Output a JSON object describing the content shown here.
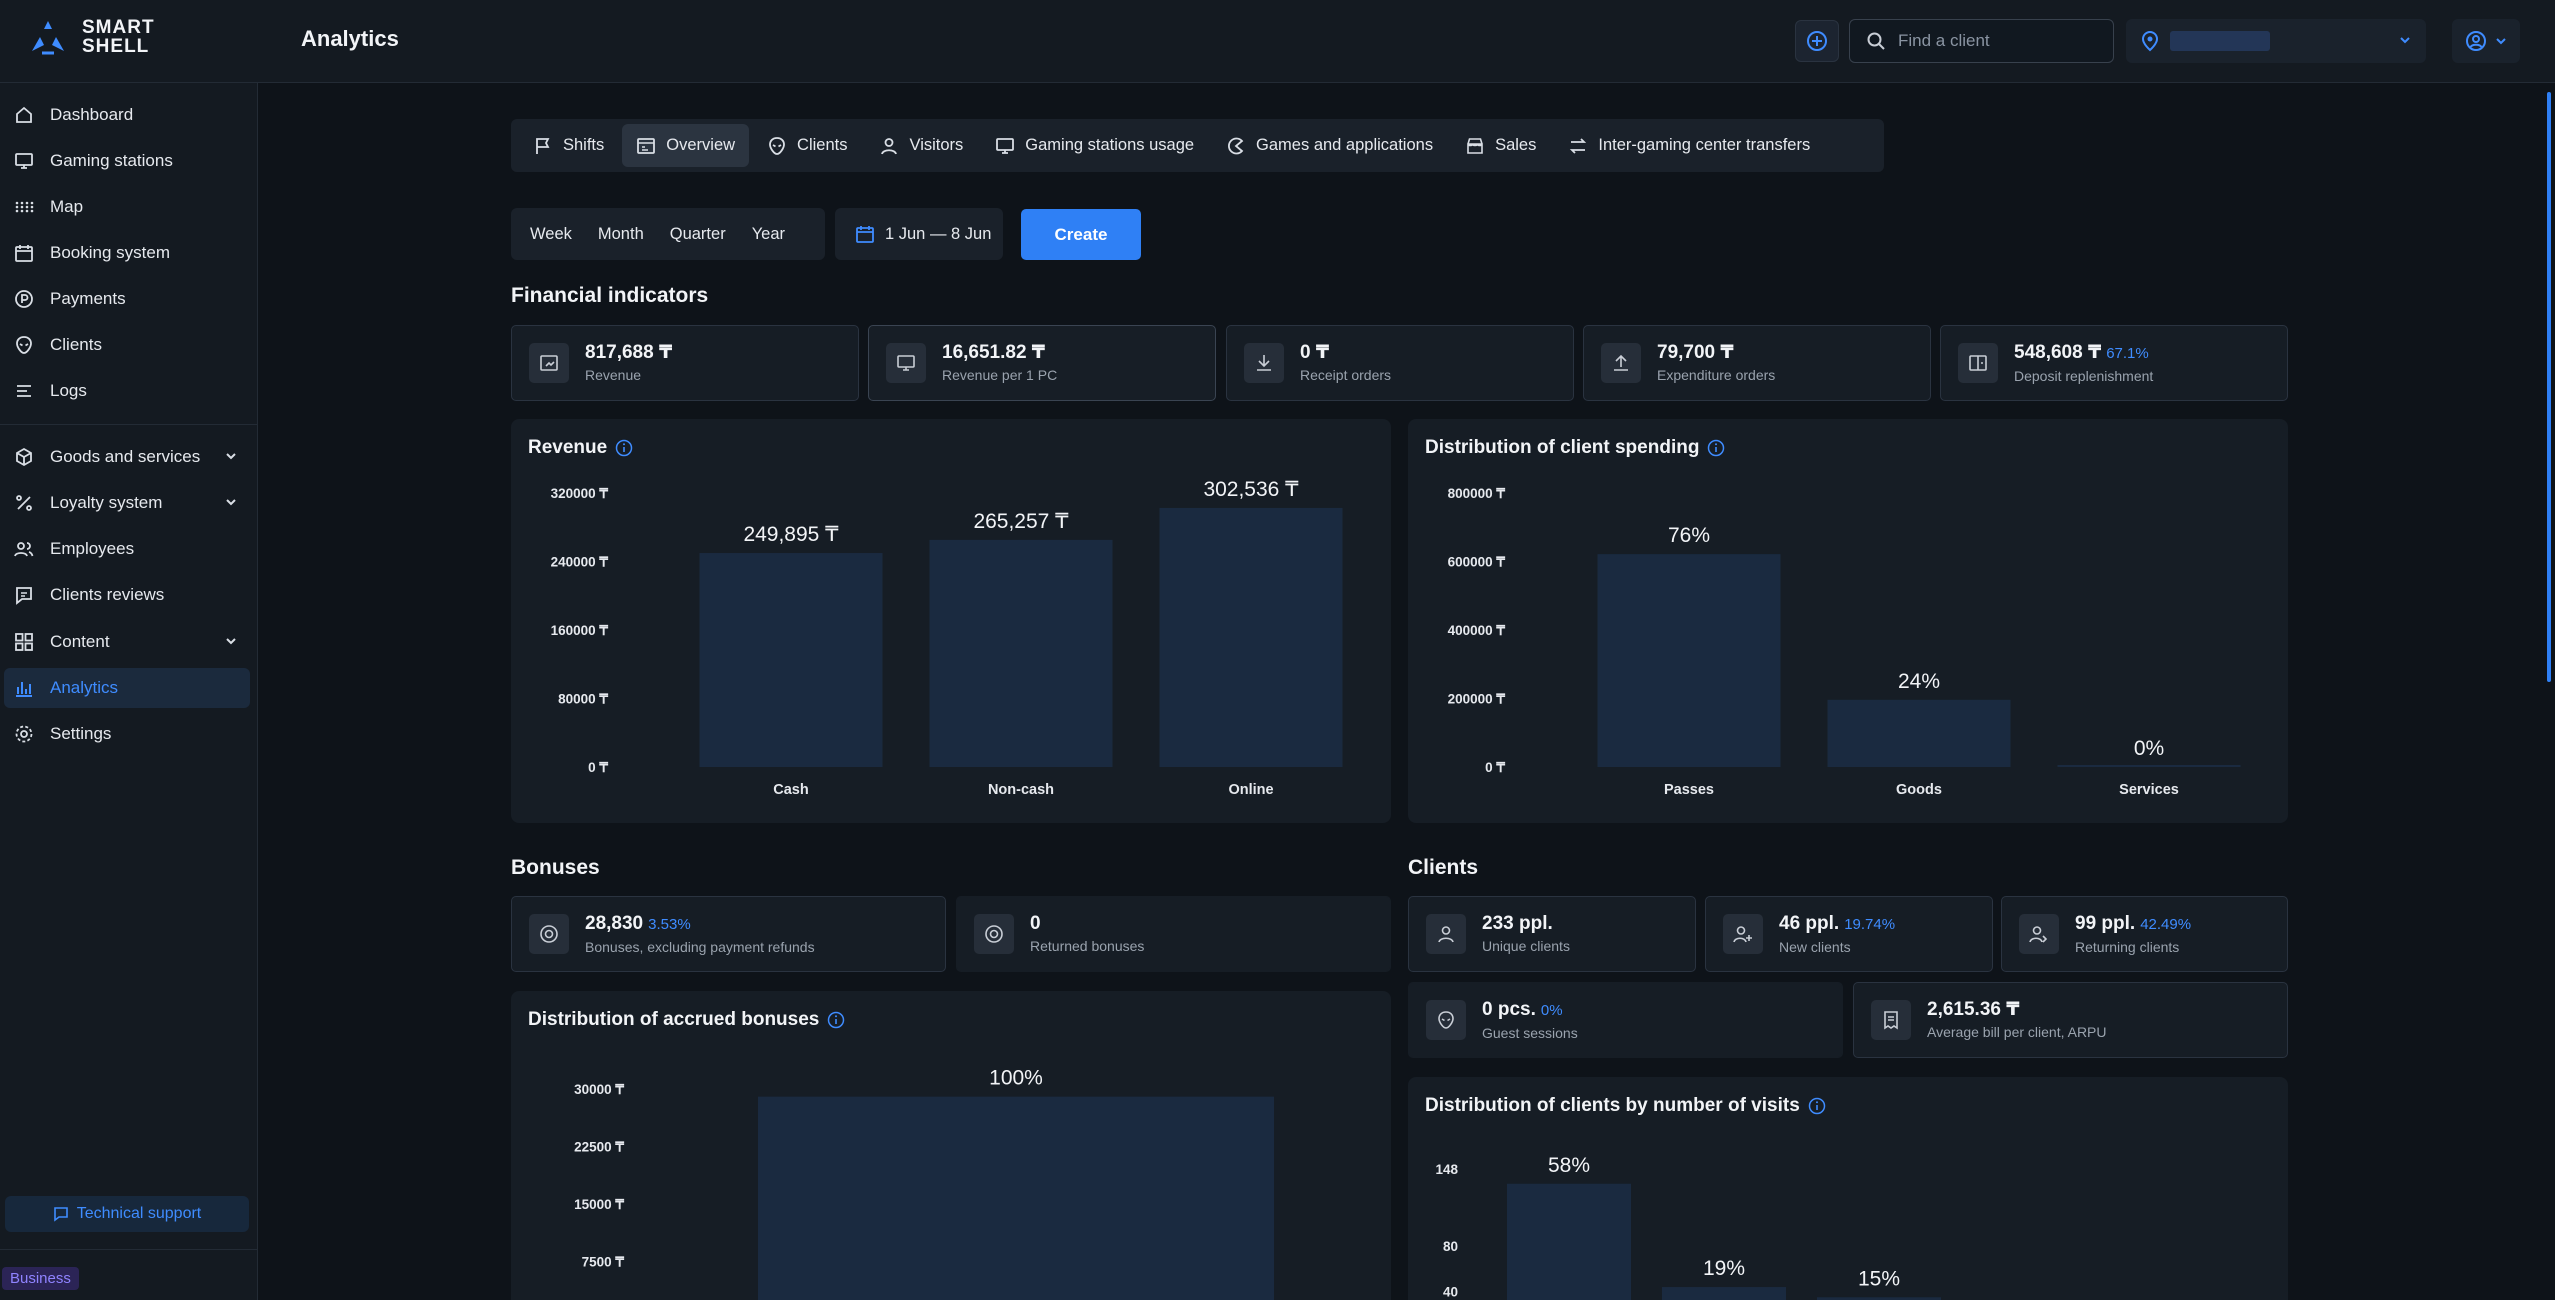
{
  "header": {
    "logo_line1": "SMART",
    "logo_line2": "SHELL",
    "title": "Analytics",
    "search_placeholder": "Find a client"
  },
  "sidebar": {
    "items": [
      {
        "label": "Dashboard",
        "icon": "home-icon"
      },
      {
        "label": "Gaming stations",
        "icon": "monitor-icon"
      },
      {
        "label": "Map",
        "icon": "grid-dots-icon"
      },
      {
        "label": "Booking system",
        "icon": "calendar-icon"
      },
      {
        "label": "Payments",
        "icon": "coin-icon"
      },
      {
        "label": "Clients",
        "icon": "alien-icon"
      },
      {
        "label": "Logs",
        "icon": "list-icon"
      },
      {
        "label": "Goods and services",
        "icon": "box-icon"
      },
      {
        "label": "Loyalty system",
        "icon": "percent-icon"
      },
      {
        "label": "Employees",
        "icon": "users-icon"
      },
      {
        "label": "Clients reviews",
        "icon": "message-icon"
      },
      {
        "label": "Content",
        "icon": "grid-icon"
      },
      {
        "label": "Analytics",
        "icon": "bar-chart-icon"
      },
      {
        "label": "Settings",
        "icon": "gear-icon"
      }
    ],
    "support_label": "Technical support",
    "plan_badge": "Business"
  },
  "tabs": [
    {
      "label": "Shifts",
      "icon": "flag-icon"
    },
    {
      "label": "Overview",
      "icon": "overview-icon"
    },
    {
      "label": "Clients",
      "icon": "alien-icon"
    },
    {
      "label": "Visitors",
      "icon": "user-icon"
    },
    {
      "label": "Gaming stations usage",
      "icon": "monitor-icon"
    },
    {
      "label": "Games and applications",
      "icon": "pacman-icon"
    },
    {
      "label": "Sales",
      "icon": "store-icon"
    },
    {
      "label": "Inter-gaming center transfers",
      "icon": "transfer-icon"
    }
  ],
  "period": {
    "options": [
      "Week",
      "Month",
      "Quarter",
      "Year"
    ],
    "date_range": "1 Jun — 8 Jun",
    "create_label": "Create"
  },
  "financial": {
    "title": "Financial indicators",
    "items": [
      {
        "value": "817,688 ₸",
        "pct": "",
        "label": "Revenue",
        "icon": "revenue-icon"
      },
      {
        "value": "16,651.82 ₸",
        "pct": "",
        "label": "Revenue per 1 PC",
        "icon": "monitor-icon"
      },
      {
        "value": "0 ₸",
        "pct": "",
        "label": "Receipt orders",
        "icon": "download-icon"
      },
      {
        "value": "79,700 ₸",
        "pct": "",
        "label": "Expenditure orders",
        "icon": "upload-icon"
      },
      {
        "value": "548,608 ₸",
        "pct": "67.1%",
        "label": "Deposit replenishment",
        "icon": "wallet-icon"
      }
    ]
  },
  "revenue_chart": {
    "title": "Revenue",
    "chart_data": {
      "type": "bar",
      "categories": [
        "Cash",
        "Non-cash",
        "Online"
      ],
      "values": [
        249895,
        265257,
        302536
      ],
      "data_labels": [
        "249,895 ₸",
        "265,257 ₸",
        "302,536 ₸"
      ],
      "y_ticks": [
        "0 ₸",
        "80000 ₸",
        "160000 ₸",
        "240000 ₸",
        "320000 ₸"
      ],
      "y_tick_values": [
        0,
        80000,
        160000,
        240000,
        320000
      ],
      "ylim": [
        0,
        320000
      ]
    }
  },
  "spending_chart": {
    "title": "Distribution of client spending",
    "chart_data": {
      "type": "bar",
      "categories": [
        "Passes",
        "Goods",
        "Services"
      ],
      "values": [
        621443,
        196245,
        0
      ],
      "data_labels": [
        "76%",
        "24%",
        "0%"
      ],
      "y_ticks": [
        "0 ₸",
        "200000 ₸",
        "400000 ₸",
        "600000 ₸",
        "800000 ₸"
      ],
      "y_tick_values": [
        0,
        200000,
        400000,
        600000,
        800000
      ],
      "ylim": [
        0,
        800000
      ]
    }
  },
  "bonuses": {
    "title": "Bonuses",
    "items": [
      {
        "value": "28,830",
        "pct": "3.53%",
        "label": "Bonuses, excluding payment refunds",
        "icon": "bonus-icon"
      },
      {
        "value": "0",
        "pct": "",
        "label": "Returned bonuses",
        "icon": "bonus-icon"
      }
    ]
  },
  "accrued_chart": {
    "title": "Distribution of accrued bonuses",
    "chart_data": {
      "type": "bar",
      "categories": [
        ""
      ],
      "values": [
        29000
      ],
      "data_labels": [
        "100%"
      ],
      "y_ticks": [
        "7500 ₸",
        "15000 ₸",
        "22500 ₸",
        "30000 ₸"
      ],
      "y_tick_values": [
        7500,
        15000,
        22500,
        30000
      ],
      "ylim": [
        0,
        30000
      ]
    }
  },
  "clients": {
    "title": "Clients",
    "items": [
      {
        "value": "233 ppl.",
        "pct": "",
        "label": "Unique clients",
        "icon": "user-icon"
      },
      {
        "value": "46 ppl.",
        "pct": "19.74%",
        "label": "New clients",
        "icon": "user-plus-icon"
      },
      {
        "value": "99 ppl.",
        "pct": "42.49%",
        "label": "Returning clients",
        "icon": "user-return-icon"
      },
      {
        "value": "0 pcs.",
        "pct": "0%",
        "label": "Guest sessions",
        "icon": "alien-icon"
      },
      {
        "value": "2,615.36 ₸",
        "pct": "",
        "label": "Average bill per client, ARPU",
        "icon": "receipt-icon"
      }
    ]
  },
  "visits_chart": {
    "title": "Distribution of clients by number of visits",
    "chart_data": {
      "type": "bar",
      "categories": [
        "",
        "",
        ""
      ],
      "values": [
        135,
        44,
        35
      ],
      "data_labels": [
        "58%",
        "19%",
        "15%"
      ],
      "y_ticks": [
        "40",
        "80",
        "148"
      ],
      "y_tick_values": [
        40,
        80,
        148
      ]
    }
  }
}
